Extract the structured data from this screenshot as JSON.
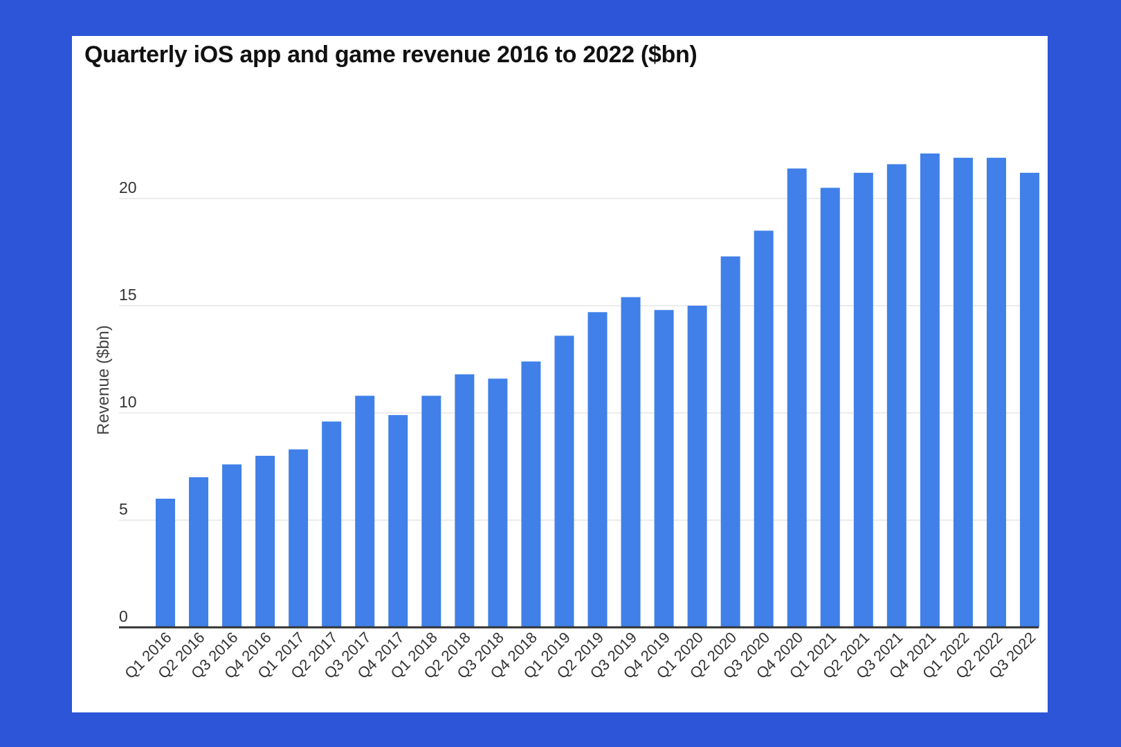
{
  "colors": {
    "background": "#2c55d8",
    "card": "#ffffff",
    "bar": "#4080e8",
    "grid": "#e6e6e6",
    "axis": "#333333"
  },
  "chart_data": {
    "type": "bar",
    "title": "Quarterly iOS app and game revenue 2016 to 2022 ($bn)",
    "xlabel": "",
    "ylabel": "Revenue ($bn)",
    "ylim": [
      0,
      25
    ],
    "yticks": [
      0,
      5,
      10,
      15,
      20
    ],
    "grid": true,
    "categories": [
      "Q1 2016",
      "Q2 2016",
      "Q3 2016",
      "Q4 2016",
      "Q1 2017",
      "Q2 2017",
      "Q3 2017",
      "Q4 2017",
      "Q1 2018",
      "Q2 2018",
      "Q3 2018",
      "Q4 2018",
      "Q1 2019",
      "Q2 2019",
      "Q3 2019",
      "Q4 2019",
      "Q1 2020",
      "Q2 2020",
      "Q3 2020",
      "Q4 2020",
      "Q1 2021",
      "Q2 2021",
      "Q3 2021",
      "Q4 2021",
      "Q1 2022",
      "Q2 2022",
      "Q3 2022"
    ],
    "values": [
      6.0,
      7.0,
      7.6,
      8.0,
      8.3,
      9.6,
      10.8,
      9.9,
      10.8,
      11.8,
      11.6,
      12.4,
      13.6,
      14.7,
      15.4,
      14.8,
      15.0,
      17.3,
      18.5,
      21.4,
      20.5,
      21.2,
      21.6,
      22.1,
      21.9,
      21.9,
      21.2
    ]
  }
}
